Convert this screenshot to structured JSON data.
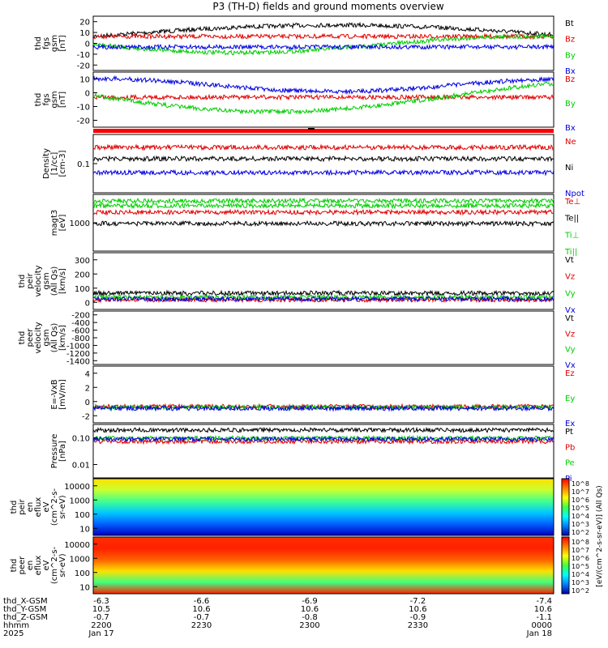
{
  "title": "P3 (TH-D) fields and ground moments overview",
  "colors": {
    "black": "#000000",
    "red": "#e00000",
    "green": "#00cc00",
    "blue": "#0000e0"
  },
  "chart_data": [
    {
      "type": "line",
      "ylabel": [
        "thd",
        "fgs",
        "gsm",
        "[nT]"
      ],
      "ticks": [
        "20",
        "10",
        "0",
        "-10",
        "-20"
      ],
      "ylim": [
        -25,
        28
      ],
      "legend": [
        {
          "name": "Bt",
          "color": "black"
        },
        {
          "name": "Bz",
          "color": "red"
        },
        {
          "name": "By",
          "color": "green"
        },
        {
          "name": "Bx",
          "color": "blue"
        }
      ]
    },
    {
      "type": "line",
      "ylabel": [
        "thd",
        "fgs",
        "gsm",
        "[nT]"
      ],
      "ticks": [
        "10",
        "0",
        "-10",
        "-20"
      ],
      "ylim": [
        -28,
        14
      ],
      "legend": [
        {
          "name": "Bz",
          "color": "red"
        },
        {
          "name": "By",
          "color": "green"
        },
        {
          "name": "Bx",
          "color": "blue"
        }
      ]
    },
    {
      "type": "line",
      "scale": "log",
      "ylabel": [
        "Density",
        "[1/cc]",
        "[cm-3]"
      ],
      "ticks": [
        "0.1"
      ],
      "legend": [
        {
          "name": "Ne",
          "color": "red"
        },
        {
          "name": "Ni",
          "color": "black"
        },
        {
          "name": "Npot",
          "color": "blue"
        }
      ]
    },
    {
      "type": "line",
      "scale": "log",
      "ylabel": [
        "magt3",
        "[eV]"
      ],
      "ticks": [
        "1000"
      ],
      "legend": [
        {
          "name": "Te⊥",
          "color": "red"
        },
        {
          "name": "Te||",
          "color": "black"
        },
        {
          "name": "Ti⊥",
          "color": "green"
        },
        {
          "name": "Ti||",
          "color": "green"
        }
      ]
    },
    {
      "type": "line",
      "ylabel": [
        "thd",
        "peir",
        "velocity",
        "gsm",
        "(All Qs)",
        "[km/s]"
      ],
      "ticks": [
        "300",
        "200",
        "100",
        "0"
      ],
      "ylim": [
        -20,
        400
      ],
      "legend": [
        {
          "name": "Vt",
          "color": "black"
        },
        {
          "name": "Vz",
          "color": "red"
        },
        {
          "name": "Vy",
          "color": "green"
        },
        {
          "name": "Vx",
          "color": "blue"
        }
      ]
    },
    {
      "type": "line",
      "ylabel": [
        "thd",
        "peer",
        "velocity",
        "gsm",
        "(All Qs)",
        "[km/s]"
      ],
      "ticks": [
        "-200",
        "-400",
        "-600",
        "-800",
        "-1000",
        "-1200",
        "-1400"
      ],
      "ylim": [
        -1500,
        -80
      ],
      "legend": [
        {
          "name": "Vt",
          "color": "black"
        },
        {
          "name": "Vz",
          "color": "red"
        },
        {
          "name": "Vy",
          "color": "green"
        },
        {
          "name": "Vx",
          "color": "blue"
        }
      ]
    },
    {
      "type": "line",
      "ylabel": [
        "E=-VxB",
        "[mV/m]"
      ],
      "ticks": [
        "4",
        "2",
        "0",
        "-2"
      ],
      "ylim": [
        -3,
        6
      ],
      "legend": [
        {
          "name": "Ez",
          "color": "red"
        },
        {
          "name": "Ey",
          "color": "green"
        },
        {
          "name": "Ex",
          "color": "blue"
        }
      ]
    },
    {
      "type": "line",
      "scale": "log",
      "ylabel": [
        "Pressure",
        "[nPa]"
      ],
      "ticks": [
        "0.10",
        "0.01"
      ],
      "legend": [
        {
          "name": "Pt",
          "color": "black"
        },
        {
          "name": "Pb",
          "color": "red"
        },
        {
          "name": "Pe",
          "color": "green"
        },
        {
          "name": "Pi",
          "color": "blue"
        }
      ]
    },
    {
      "type": "heatmap",
      "ylabel": [
        "thd",
        "peir",
        "en",
        "eflux",
        "eV",
        "(cm^2-s-",
        "sr-eV)"
      ],
      "ticks": [
        "10000",
        "1000",
        "100",
        "10"
      ],
      "colorbar": [
        "10^8",
        "10^7",
        "10^6",
        "10^5",
        "10^4",
        "10^3",
        "10^2"
      ],
      "colorbar_label": "[eV/(cm^2-s-sr-eV)] (All Qs)"
    },
    {
      "type": "heatmap",
      "ylabel": [
        "thd",
        "peer",
        "en",
        "eflux",
        "eV",
        "(cm^2-s-",
        "sr-eV)"
      ],
      "ticks": [
        "10000",
        "1000",
        "100",
        "10"
      ],
      "colorbar": [
        "10^8",
        "10^7",
        "10^6",
        "10^5",
        "10^4",
        "10^3",
        "10^2"
      ],
      "colorbar_label": "[eV/(cm^2-s-sr-eV)] (All Qs)"
    }
  ],
  "xaxis": {
    "rows": [
      {
        "label": "thd_X-GSM",
        "values": [
          "-6.3",
          "-6.6",
          "-6.9",
          "-7.2",
          "-7.4"
        ]
      },
      {
        "label": "thd_Y-GSM",
        "values": [
          "10.5",
          "10.6",
          "10.6",
          "10.6",
          "10.6"
        ]
      },
      {
        "label": "thd_Z-GSM",
        "values": [
          "-0.7",
          "-0.7",
          "-0.8",
          "-0.9",
          "-1.1"
        ]
      },
      {
        "label": "hhmm",
        "values": [
          "2200",
          "2230",
          "2300",
          "2330",
          "0000"
        ]
      },
      {
        "label": "2025",
        "values": [
          "Jan 17",
          "",
          "",
          "",
          "Jan 18"
        ]
      }
    ]
  }
}
